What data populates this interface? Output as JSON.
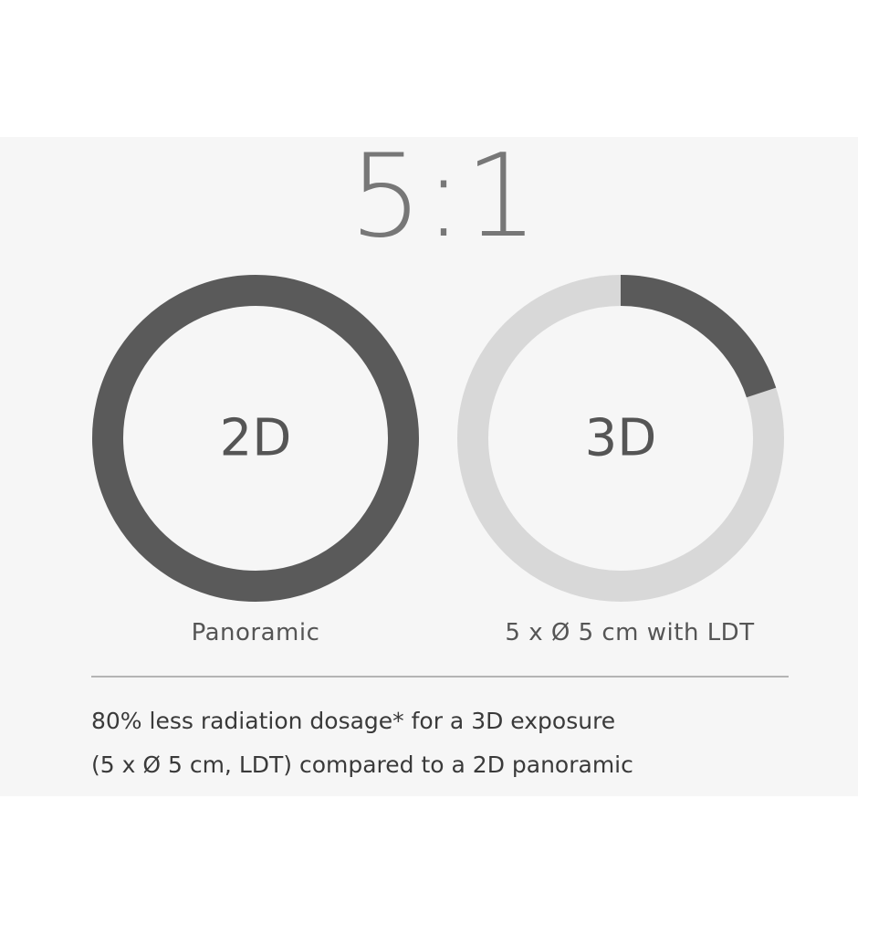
{
  "ratio_label": "5:1",
  "chart_data": {
    "type": "pie",
    "style": "donut",
    "items": [
      {
        "name": "2D",
        "label": "2D",
        "caption": "Panoramic",
        "fraction": 1.0
      },
      {
        "name": "3D",
        "label": "3D",
        "caption": "5 x Ø 5 cm with LDT",
        "fraction": 0.2
      }
    ],
    "colors": {
      "filled": "#5a5a5a",
      "track": "#d8d8d8"
    }
  },
  "footnote": {
    "line1": "80% less radiation dosage* for a 3D exposure",
    "line2": "(5 x Ø 5 cm, LDT) compared to a 2D panoramic"
  }
}
